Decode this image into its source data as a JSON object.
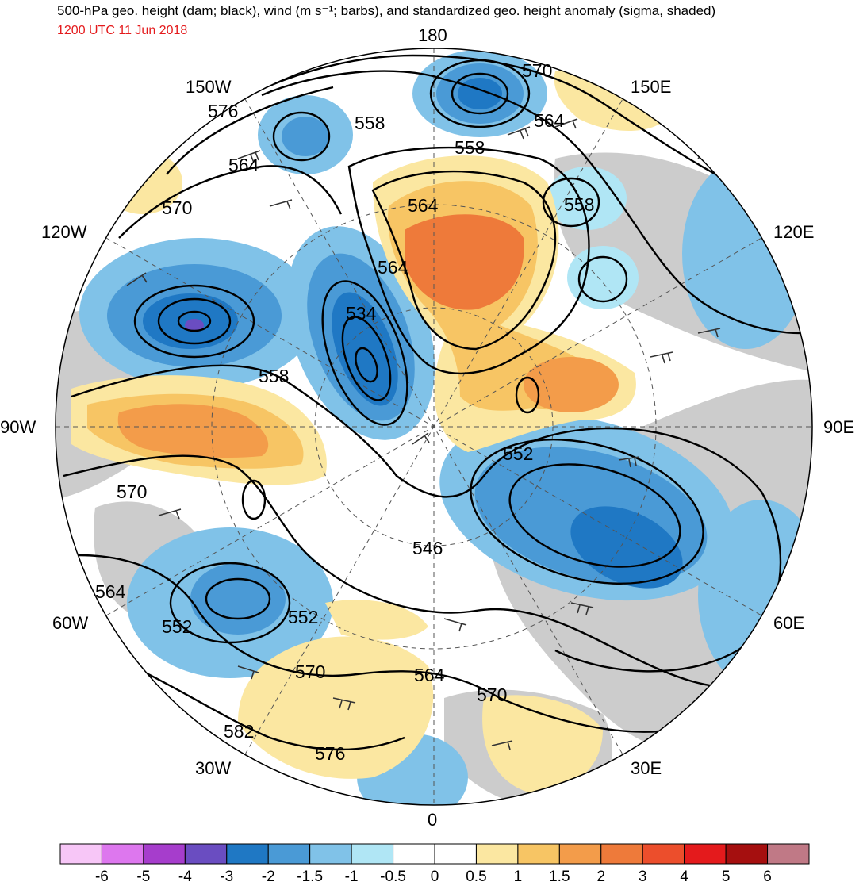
{
  "title": "500-hPa geo. height (dam; black), wind (m s⁻¹; barbs), and standardized geo. height anomaly (sigma, shaded)",
  "subtitle": "1200 UTC 11 Jun 2018",
  "longitude_labels": {
    "top": "180",
    "bottom": "0",
    "left": "90W",
    "right": "90E",
    "upper_left_1": "150W",
    "upper_left_2": "120W",
    "lower_left_1": "60W",
    "lower_left_2": "30W",
    "upper_right_1": "150E",
    "upper_right_2": "120E",
    "lower_right_1": "60E",
    "lower_right_2": "30E"
  },
  "contour_labels": [
    "570",
    "564",
    "558",
    "576",
    "564",
    "570",
    "564",
    "558",
    "564",
    "534",
    "558",
    "552",
    "570",
    "546",
    "552",
    "564",
    "552",
    "558",
    "570",
    "564",
    "570",
    "582",
    "576"
  ],
  "colorbar": {
    "colors": [
      "#f7c6f7",
      "#dd77ee",
      "#a63dcc",
      "#6a4dc1",
      "#1f78c4",
      "#4a9ad6",
      "#80c2e8",
      "#b0e6f5",
      "#ffffff",
      "#ffffff",
      "#fbe7a1",
      "#f7c564",
      "#f39c4a",
      "#ee7a3a",
      "#ec4e2c",
      "#e41a1c",
      "#a50f0f",
      "#c07986"
    ],
    "tick_labels": [
      "-6",
      "-5",
      "-4",
      "-3",
      "-2",
      "-1.5",
      "-1",
      "-0.5",
      "0",
      "0.5",
      "1",
      "1.5",
      "2",
      "3",
      "4",
      "5",
      "6"
    ]
  },
  "anomaly_colors": {
    "strong_neg": "#1f78c4",
    "mid_neg": "#4a9ad6",
    "weak_neg": "#80c2e8",
    "faint_neg": "#b0e6f5",
    "faint_pos": "#fbe7a1",
    "weak_pos": "#f7c564",
    "mid_pos": "#f39c4a",
    "strong_pos": "#ee7a3a",
    "land": "#cccccc"
  }
}
